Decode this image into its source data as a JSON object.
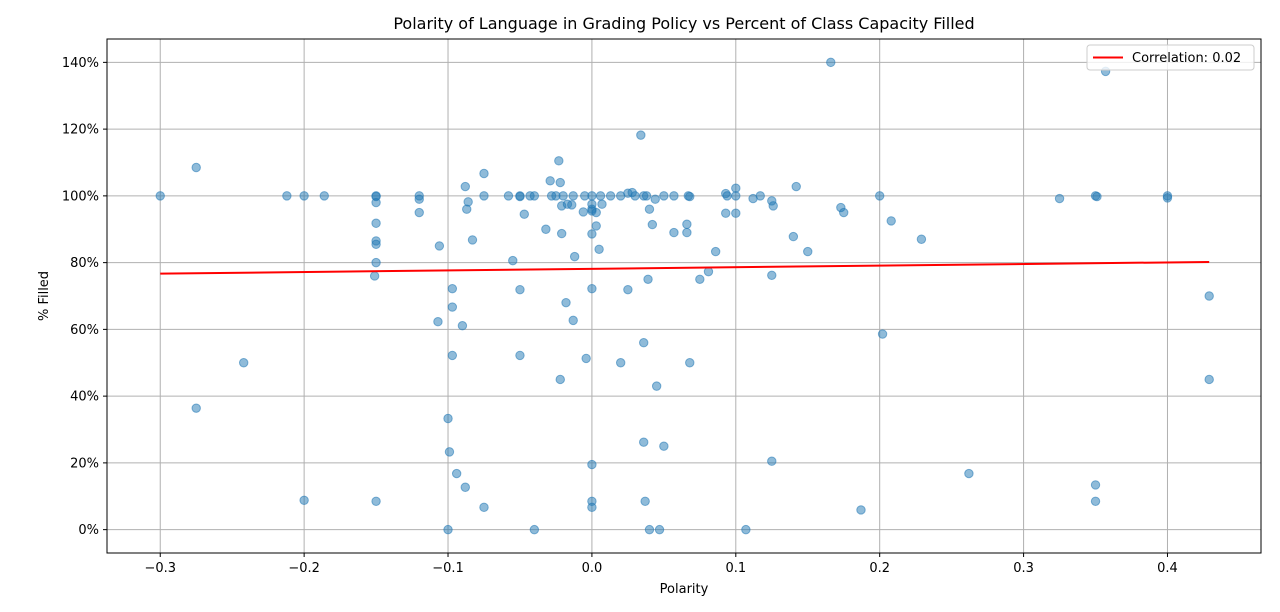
{
  "chart_data": {
    "type": "scatter",
    "title": "Polarity of Language in Grading Policy vs Percent of Class Capacity Filled",
    "xlabel": "Polarity",
    "ylabel": "% Filled",
    "xlim": [
      -0.337,
      0.465
    ],
    "ylim": [
      -7,
      147
    ],
    "xticks": [
      -0.3,
      -0.2,
      -0.1,
      0.0,
      0.1,
      0.2,
      0.3,
      0.4
    ],
    "xtick_labels": [
      "−0.3",
      "−0.2",
      "−0.1",
      "0.0",
      "0.1",
      "0.2",
      "0.3",
      "0.4"
    ],
    "yticks": [
      0,
      20,
      40,
      60,
      80,
      100,
      120,
      140
    ],
    "ytick_labels": [
      "0%",
      "20%",
      "40%",
      "60%",
      "80%",
      "100%",
      "120%",
      "140%"
    ],
    "grid": true,
    "legend_position": "top-right",
    "colors": {
      "points": "#1f77b4",
      "trend": "#ff0000",
      "grid": "#b0b0b0"
    },
    "trendline": {
      "label": "Correlation: 0.02",
      "x": [
        -0.3,
        0.429
      ],
      "y": [
        76.7,
        80.2
      ]
    },
    "points": [
      [
        -0.3,
        100
      ],
      [
        -0.275,
        108.5
      ],
      [
        -0.275,
        36.4
      ],
      [
        -0.242,
        50
      ],
      [
        -0.212,
        100
      ],
      [
        -0.2,
        100
      ],
      [
        -0.2,
        8.8
      ],
      [
        -0.186,
        100
      ],
      [
        -0.15,
        100
      ],
      [
        -0.15,
        99.8
      ],
      [
        -0.15,
        98
      ],
      [
        -0.15,
        91.8
      ],
      [
        -0.15,
        86.5
      ],
      [
        -0.15,
        85.5
      ],
      [
        -0.15,
        80
      ],
      [
        -0.151,
        76
      ],
      [
        -0.15,
        8.5
      ],
      [
        -0.12,
        100
      ],
      [
        -0.12,
        99
      ],
      [
        -0.12,
        95
      ],
      [
        -0.106,
        85
      ],
      [
        -0.107,
        62.3
      ],
      [
        -0.1,
        33.3
      ],
      [
        -0.099,
        23.3
      ],
      [
        -0.1,
        0
      ],
      [
        -0.097,
        72.2
      ],
      [
        -0.097,
        66.7
      ],
      [
        -0.097,
        52.2
      ],
      [
        -0.094,
        16.8
      ],
      [
        -0.09,
        61.1
      ],
      [
        -0.088,
        102.8
      ],
      [
        -0.087,
        96
      ],
      [
        -0.086,
        98.2
      ],
      [
        -0.083,
        86.8
      ],
      [
        -0.088,
        12.7
      ],
      [
        -0.075,
        106.7
      ],
      [
        -0.075,
        100
      ],
      [
        -0.075,
        6.7
      ],
      [
        -0.058,
        100
      ],
      [
        -0.055,
        80.6
      ],
      [
        -0.05,
        100
      ],
      [
        -0.05,
        99.8
      ],
      [
        -0.05,
        71.9
      ],
      [
        -0.05,
        52.2
      ],
      [
        -0.047,
        94.5
      ],
      [
        -0.043,
        100
      ],
      [
        -0.04,
        100
      ],
      [
        -0.04,
        0
      ],
      [
        -0.032,
        90
      ],
      [
        -0.029,
        104.5
      ],
      [
        -0.028,
        100
      ],
      [
        -0.025,
        100
      ],
      [
        -0.023,
        110.5
      ],
      [
        -0.022,
        104
      ],
      [
        -0.021,
        97
      ],
      [
        -0.021,
        88.7
      ],
      [
        -0.022,
        45
      ],
      [
        -0.02,
        100
      ],
      [
        -0.017,
        97.5
      ],
      [
        -0.018,
        68
      ],
      [
        -0.014,
        97.3
      ],
      [
        -0.013,
        100
      ],
      [
        -0.013,
        62.7
      ],
      [
        -0.012,
        81.8
      ],
      [
        -0.006,
        95.2
      ],
      [
        -0.005,
        100
      ],
      [
        -0.004,
        51.3
      ],
      [
        0,
        100
      ],
      [
        0,
        97.5
      ],
      [
        0,
        96
      ],
      [
        0,
        95.5
      ],
      [
        0,
        88.6
      ],
      [
        0,
        72.2
      ],
      [
        0,
        19.5
      ],
      [
        0,
        8.5
      ],
      [
        0,
        6.7
      ],
      [
        0.003,
        91
      ],
      [
        0.003,
        95
      ],
      [
        0.005,
        84
      ],
      [
        0.006,
        100
      ],
      [
        0.007,
        97.5
      ],
      [
        0.013,
        100
      ],
      [
        0.02,
        100
      ],
      [
        0.02,
        50
      ],
      [
        0.025,
        100.8
      ],
      [
        0.025,
        71.9
      ],
      [
        0.028,
        101
      ],
      [
        0.03,
        100
      ],
      [
        0.034,
        118.2
      ],
      [
        0.036,
        100
      ],
      [
        0.036,
        56
      ],
      [
        0.036,
        26.2
      ],
      [
        0.037,
        8.5
      ],
      [
        0.038,
        100
      ],
      [
        0.039,
        75
      ],
      [
        0.04,
        96
      ],
      [
        0.04,
        0
      ],
      [
        0.042,
        91.4
      ],
      [
        0.044,
        99
      ],
      [
        0.045,
        43
      ],
      [
        0.047,
        0
      ],
      [
        0.05,
        100
      ],
      [
        0.05,
        25
      ],
      [
        0.057,
        100
      ],
      [
        0.057,
        89
      ],
      [
        0.066,
        91.5
      ],
      [
        0.066,
        89
      ],
      [
        0.067,
        100
      ],
      [
        0.068,
        99.8
      ],
      [
        0.068,
        50
      ],
      [
        0.075,
        75
      ],
      [
        0.081,
        77.3
      ],
      [
        0.086,
        83.3
      ],
      [
        0.093,
        100.7
      ],
      [
        0.094,
        100
      ],
      [
        0.093,
        94.8
      ],
      [
        0.1,
        102.3
      ],
      [
        0.1,
        100
      ],
      [
        0.1,
        94.8
      ],
      [
        0.107,
        0
      ],
      [
        0.112,
        99.2
      ],
      [
        0.117,
        100
      ],
      [
        0.125,
        98.5
      ],
      [
        0.126,
        97
      ],
      [
        0.125,
        76.2
      ],
      [
        0.125,
        20.5
      ],
      [
        0.14,
        87.8
      ],
      [
        0.142,
        102.8
      ],
      [
        0.15,
        83.3
      ],
      [
        0.166,
        140
      ],
      [
        0.173,
        96.5
      ],
      [
        0.175,
        95
      ],
      [
        0.187,
        5.9
      ],
      [
        0.2,
        100
      ],
      [
        0.202,
        58.6
      ],
      [
        0.208,
        92.5
      ],
      [
        0.229,
        87
      ],
      [
        0.262,
        16.8
      ],
      [
        0.325,
        99.2
      ],
      [
        0.35,
        100
      ],
      [
        0.351,
        99.8
      ],
      [
        0.35,
        13.4
      ],
      [
        0.35,
        8.5
      ],
      [
        0.357,
        137.3
      ],
      [
        0.4,
        100
      ],
      [
        0.4,
        99.4
      ],
      [
        0.429,
        70
      ],
      [
        0.429,
        45
      ]
    ]
  }
}
